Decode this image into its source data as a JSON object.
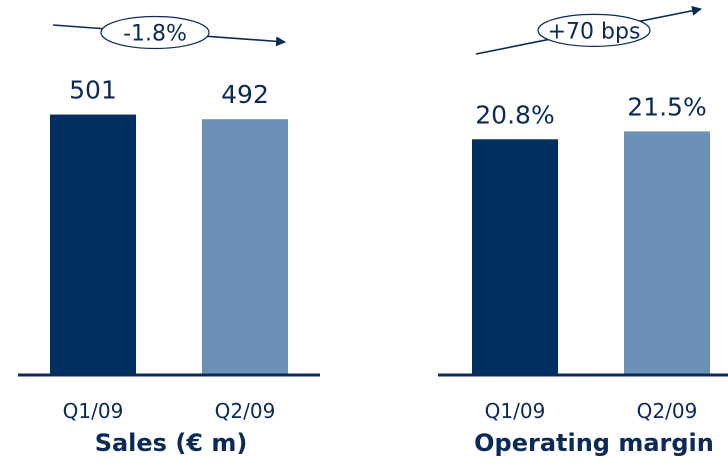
{
  "chart_data": [
    {
      "type": "bar",
      "title": "Sales (€ m)",
      "categories": [
        "Q1/09",
        "Q2/09"
      ],
      "values": [
        501,
        492
      ],
      "value_labels": [
        "501",
        "492"
      ],
      "ylim": [
        0,
        560
      ],
      "change_label": "-1.8%",
      "change_direction": "down",
      "bar_colors": [
        "#00305f",
        "#6b91b6"
      ],
      "grid": false
    },
    {
      "type": "bar",
      "title": "Operating margin",
      "categories": [
        "Q1/09",
        "Q2/09"
      ],
      "values": [
        20.8,
        21.5
      ],
      "value_labels": [
        "20.8%",
        "21.5%"
      ],
      "ylim": [
        0,
        25.7
      ],
      "change_label": "+70 bps",
      "change_direction": "up",
      "bar_colors": [
        "#00305f",
        "#6b91b6"
      ],
      "grid": false
    }
  ],
  "colors": {
    "text": "#0b2a55",
    "axis": "#0b2a55",
    "dark_bar": "#00305f",
    "light_bar": "#6b91b6"
  }
}
